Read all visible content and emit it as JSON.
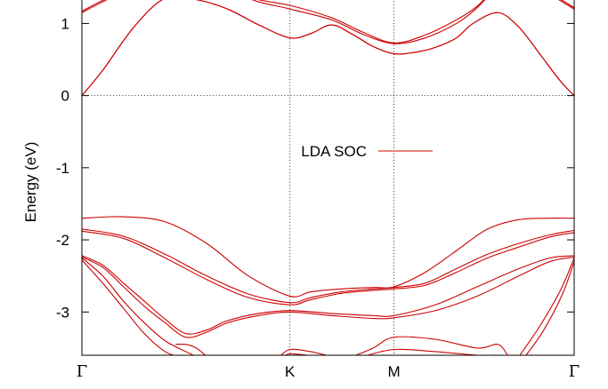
{
  "chart_data": {
    "type": "line",
    "title": "",
    "xlabel": "",
    "ylabel": "Energy (eV)",
    "ylim": [
      -3.6,
      1.35
    ],
    "yticks": [
      1,
      0,
      -1,
      -2,
      -3
    ],
    "ytick_labels": [
      "1",
      "0",
      "-1",
      "-2",
      "-3"
    ],
    "x_kpoints": [
      {
        "label": "Γ",
        "pos": 0.0
      },
      {
        "label": "K",
        "pos": 1.0
      },
      {
        "label": "M",
        "pos": 1.5
      },
      {
        "label": "Γ",
        "pos": 2.366
      }
    ],
    "fermi_level": 0,
    "grid": "dotted vertical lines at K and M, dotted horizontal line at E = 0",
    "legend": {
      "label": "LDA SOC",
      "placement": "center",
      "color": "#cc0000"
    },
    "series_color": "#cc0000",
    "bands": [
      {
        "x": [
          0,
          0.1,
          0.25,
          0.4,
          0.55,
          0.7,
          0.85,
          1.0,
          1.1,
          1.2,
          1.3,
          1.4,
          1.5,
          1.6,
          1.7,
          1.8,
          1.88,
          2.0,
          2.1,
          2.2,
          2.3,
          2.366
        ],
        "y": [
          0.0,
          0.35,
          0.95,
          1.35,
          1.33,
          1.2,
          0.98,
          0.8,
          0.86,
          0.98,
          0.85,
          0.68,
          0.58,
          0.6,
          0.67,
          0.8,
          1.0,
          1.15,
          0.95,
          0.58,
          0.2,
          0.0
        ]
      },
      {
        "x": [
          0,
          0.1,
          0.25,
          0.4,
          0.55,
          0.7,
          0.85,
          1.0,
          1.1,
          1.2,
          1.3,
          1.4,
          1.5,
          1.6,
          1.7,
          1.8,
          1.88,
          2.0,
          2.1,
          2.2,
          2.3,
          2.366
        ],
        "y": [
          0.0,
          0.35,
          0.95,
          1.35,
          1.33,
          1.2,
          0.98,
          0.8,
          0.86,
          0.98,
          0.85,
          0.68,
          0.58,
          0.6,
          0.67,
          0.8,
          1.0,
          1.15,
          0.95,
          0.58,
          0.2,
          0.0
        ]
      },
      {
        "x": [
          0,
          0.1,
          0.25,
          0.4,
          0.55,
          0.7,
          0.85,
          1.0,
          1.2,
          1.35,
          1.5,
          1.65,
          1.8,
          1.9,
          2.0,
          2.12,
          2.25,
          2.366
        ],
        "y": [
          1.15,
          1.3,
          1.5,
          1.6,
          1.55,
          1.45,
          1.3,
          1.2,
          1.05,
          0.85,
          0.72,
          0.8,
          1.0,
          1.22,
          1.5,
          1.6,
          1.4,
          1.2
        ]
      },
      {
        "x": [
          0,
          0.1,
          0.25,
          0.4,
          0.55,
          0.7,
          0.85,
          1.0,
          1.2,
          1.35,
          1.5,
          1.65,
          1.8,
          1.9,
          2.0,
          2.12,
          2.25,
          2.366
        ],
        "y": [
          1.17,
          1.32,
          1.52,
          1.62,
          1.57,
          1.47,
          1.33,
          1.25,
          1.08,
          0.88,
          0.73,
          0.84,
          1.05,
          1.24,
          1.52,
          1.62,
          1.42,
          1.22
        ]
      },
      {
        "x": [
          0,
          0.2,
          0.4,
          0.6,
          0.8,
          1.0,
          1.1,
          1.25,
          1.4,
          1.5,
          1.65,
          1.8,
          1.95,
          2.1,
          2.25,
          2.366
        ],
        "y": [
          -1.7,
          -1.68,
          -1.75,
          -2.05,
          -2.5,
          -2.78,
          -2.72,
          -2.68,
          -2.66,
          -2.65,
          -2.45,
          -2.15,
          -1.85,
          -1.72,
          -1.7,
          -1.7
        ]
      },
      {
        "x": [
          0,
          0.2,
          0.4,
          0.6,
          0.8,
          1.0,
          1.1,
          1.25,
          1.4,
          1.5,
          1.65,
          1.8,
          1.95,
          2.1,
          2.25,
          2.366
        ],
        "y": [
          -1.85,
          -1.95,
          -2.2,
          -2.5,
          -2.75,
          -2.87,
          -2.8,
          -2.72,
          -2.68,
          -2.66,
          -2.6,
          -2.4,
          -2.2,
          -2.05,
          -1.93,
          -1.87
        ]
      },
      {
        "x": [
          0,
          0.2,
          0.4,
          0.6,
          0.8,
          1.0,
          1.1,
          1.25,
          1.4,
          1.5,
          1.65,
          1.8,
          1.95,
          2.1,
          2.25,
          2.366
        ],
        "y": [
          -1.88,
          -1.98,
          -2.25,
          -2.55,
          -2.8,
          -2.9,
          -2.83,
          -2.74,
          -2.7,
          -2.68,
          -2.63,
          -2.45,
          -2.25,
          -2.1,
          -1.96,
          -1.9
        ]
      },
      {
        "x": [
          0,
          0.1,
          0.2,
          0.3,
          0.4,
          0.5,
          0.6,
          0.7,
          0.85,
          1.0,
          1.2,
          1.4,
          1.5,
          1.7,
          1.9,
          2.1,
          2.25,
          2.366
        ],
        "y": [
          -2.22,
          -2.35,
          -2.6,
          -2.85,
          -3.1,
          -3.3,
          -3.25,
          -3.12,
          -3.02,
          -2.98,
          -3.02,
          -3.05,
          -3.05,
          -2.9,
          -2.65,
          -2.4,
          -2.25,
          -2.22
        ]
      },
      {
        "x": [
          0,
          0.1,
          0.2,
          0.3,
          0.4,
          0.5,
          0.6,
          0.7,
          0.85,
          1.0,
          1.2,
          1.4,
          1.5,
          1.7,
          1.9,
          2.1,
          2.25,
          2.366
        ],
        "y": [
          -2.24,
          -2.38,
          -2.65,
          -2.92,
          -3.15,
          -3.35,
          -3.28,
          -3.15,
          -3.05,
          -3.0,
          -3.05,
          -3.09,
          -3.08,
          -2.98,
          -2.78,
          -2.5,
          -2.3,
          -2.24
        ]
      },
      {
        "x": [
          0,
          0.1,
          0.2,
          0.3,
          0.4,
          0.5,
          0.55
        ],
        "y": [
          -2.25,
          -2.5,
          -2.85,
          -3.15,
          -3.4,
          -3.55,
          -3.62
        ]
      },
      {
        "x": [
          0,
          0.1,
          0.2,
          0.3,
          0.4,
          0.47
        ],
        "y": [
          -2.28,
          -2.6,
          -2.95,
          -3.3,
          -3.55,
          -3.62
        ]
      },
      {
        "x": [
          0.45,
          0.5,
          0.55,
          0.6
        ],
        "y": [
          -3.45,
          -3.45,
          -3.5,
          -3.62
        ]
      },
      {
        "x": [
          0.95,
          1.0,
          1.1,
          1.2
        ],
        "y": [
          -3.62,
          -3.52,
          -3.55,
          -3.62
        ]
      },
      {
        "x": [
          0.97,
          1.0,
          1.08,
          1.15
        ],
        "y": [
          -3.62,
          -3.58,
          -3.6,
          -3.62
        ]
      },
      {
        "x": [
          1.3,
          1.4,
          1.5,
          1.7,
          1.9,
          2.0,
          2.05
        ],
        "y": [
          -3.62,
          -3.5,
          -3.35,
          -3.38,
          -3.5,
          -3.45,
          -3.62
        ]
      },
      {
        "x": [
          1.35,
          1.5,
          1.7,
          1.9,
          2.0,
          2.05
        ],
        "y": [
          -3.62,
          -3.52,
          -3.55,
          -3.6,
          -3.6,
          -3.62
        ]
      },
      {
        "x": [
          2.1,
          2.2,
          2.3,
          2.366
        ],
        "y": [
          -3.62,
          -3.2,
          -2.7,
          -2.25
        ]
      },
      {
        "x": [
          2.13,
          2.22,
          2.31,
          2.366
        ],
        "y": [
          -3.62,
          -3.25,
          -2.75,
          -2.3
        ]
      }
    ]
  }
}
